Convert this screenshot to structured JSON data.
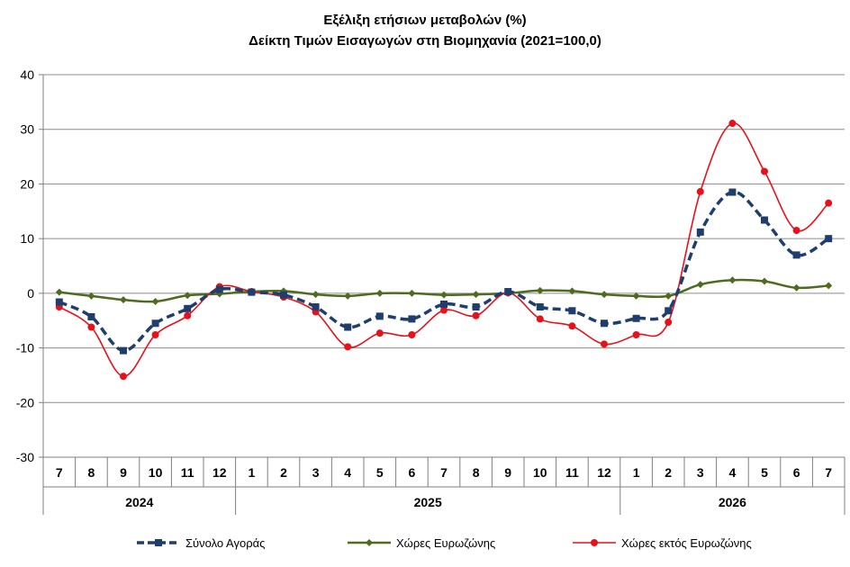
{
  "chart_data": {
    "type": "line",
    "title": "Εξέλιξη ετήσιων μεταβολών (%)",
    "subtitle": "Δείκτη Τιμών Εισαγωγών στη Βιομηχανία (2021=100,0)",
    "categories": [
      "7",
      "8",
      "9",
      "10",
      "11",
      "12",
      "1",
      "2",
      "3",
      "4",
      "5",
      "6",
      "7",
      "8",
      "9",
      "10",
      "11",
      "12",
      "1",
      "2",
      "3",
      "4",
      "5",
      "6",
      "7"
    ],
    "year_groups": [
      {
        "label": "2024",
        "start": 0,
        "end": 5
      },
      {
        "label": "2025",
        "start": 6,
        "end": 17
      },
      {
        "label": "2026",
        "start": 18,
        "end": 24
      }
    ],
    "ylim": [
      -30,
      40
    ],
    "yticks": [
      40,
      30,
      20,
      10,
      0,
      -10,
      -20,
      -30
    ],
    "grid": true,
    "legend_position": "bottom",
    "series": [
      {
        "name": "Σύνολο Αγοράς",
        "color": "#1F3E6E",
        "style": "dashed-square",
        "values": [
          -1.6,
          -4.3,
          -10.5,
          -5.5,
          -2.8,
          0.7,
          0.2,
          -0.3,
          -2.5,
          -6.2,
          -4.2,
          -4.7,
          -2.0,
          -2.5,
          0.3,
          -2.5,
          -3.2,
          -5.5,
          -4.6,
          -3.2,
          11.2,
          18.5,
          13.4,
          7.0,
          10.0
        ]
      },
      {
        "name": "Χώρες Ευρωζώνης",
        "color": "#4E6B20",
        "style": "solid-diamond",
        "values": [
          0.2,
          -0.5,
          -1.2,
          -1.5,
          -0.4,
          -0.1,
          0.3,
          0.4,
          -0.2,
          -0.5,
          0.0,
          0.0,
          -0.3,
          -0.2,
          0.0,
          0.5,
          0.4,
          -0.2,
          -0.5,
          -0.5,
          1.6,
          2.4,
          2.2,
          1.0,
          1.4
        ]
      },
      {
        "name": "Χώρες εκτός Ευρωζώνης",
        "color": "#E8101A",
        "style": "solid-circle",
        "values": [
          -2.5,
          -6.2,
          -15.2,
          -7.6,
          -4.1,
          1.2,
          0.3,
          -0.7,
          -3.4,
          -9.8,
          -7.3,
          -7.6,
          -3.1,
          -4.1,
          0.1,
          -4.7,
          -6.0,
          -9.3,
          -7.6,
          -5.3,
          18.6,
          31.1,
          22.3,
          11.5,
          16.5
        ]
      }
    ]
  }
}
